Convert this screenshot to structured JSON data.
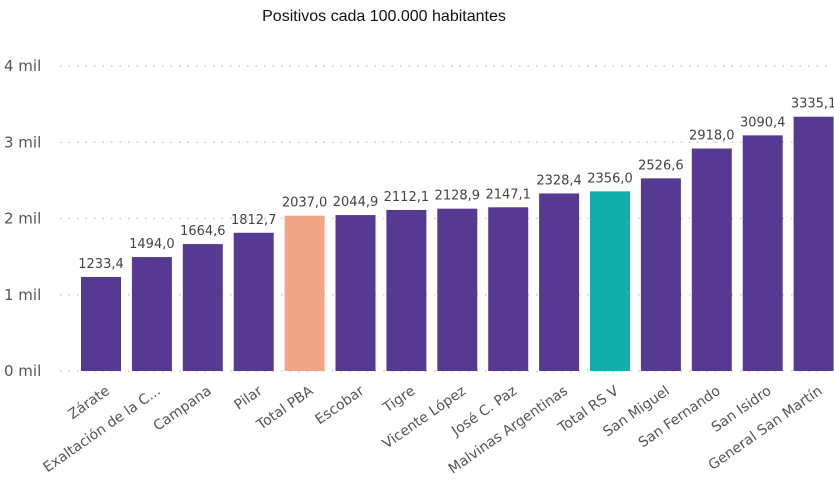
{
  "chart_data": {
    "type": "bar",
    "title": "Positivos cada 100.000 habitantes",
    "categories": [
      "Zárate",
      "Exaltación de la C...",
      "Campana",
      "Pilar",
      "Total PBA",
      "Escobar",
      "Tigre",
      "Vicente López",
      "José C. Paz",
      "Malvinas Argentinas",
      "Total RS V",
      "San Miguel",
      "San Fernando",
      "San Isidro",
      "General San Martín"
    ],
    "values": [
      1233.4,
      1494.0,
      1664.6,
      1812.7,
      2037.0,
      2044.9,
      2112.1,
      2128.9,
      2147.1,
      2328.4,
      2356.0,
      2526.6,
      2918.0,
      3090.4,
      3335.1
    ],
    "value_labels": [
      "1233,4",
      "1494,0",
      "1664,6",
      "1812,7",
      "2037,0",
      "2044,9",
      "2112,1",
      "2128,9",
      "2147,1",
      "2328,4",
      "2356,0",
      "2526,6",
      "2918,0",
      "3090,4",
      "3335,1"
    ],
    "bar_colors": [
      "#563a91",
      "#563a91",
      "#563a91",
      "#563a91",
      "#f0a686",
      "#563a91",
      "#563a91",
      "#563a91",
      "#563a91",
      "#563a91",
      "#12aeaa",
      "#563a91",
      "#563a91",
      "#563a91",
      "#563a91"
    ],
    "y_ticks": [
      0,
      1000,
      2000,
      3000,
      4000
    ],
    "y_tick_labels": [
      "0 mil",
      "1 mil",
      "2 mil",
      "3 mil",
      "4 mil"
    ],
    "ylim": [
      0,
      4000
    ],
    "xlabel": "",
    "ylabel": "",
    "grid": true,
    "legend": false
  }
}
